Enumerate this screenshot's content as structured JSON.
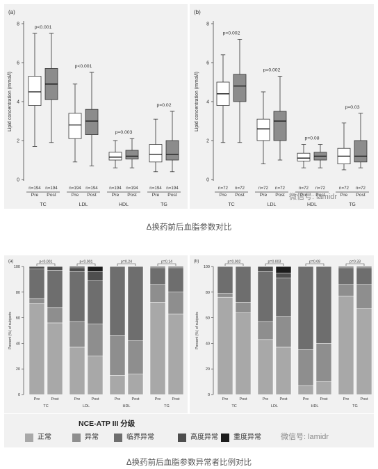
{
  "captions": {
    "top": "Δ换药前后血脂参数对比",
    "bottom": "Δ换药前后血脂参数异常者比例对比"
  },
  "watermarks": {
    "top": "微信号: lamidr",
    "bottom": "微信号: lamidr"
  },
  "legend": {
    "title": "NCE-ATP III 分级",
    "items": [
      {
        "label": "正常",
        "color": "#a8a8a8"
      },
      {
        "label": "异常",
        "color": "#8e8e8e"
      },
      {
        "label": "临界异常",
        "color": "#6e6e6e"
      },
      {
        "label": "高度异常",
        "color": "#4e4e4e"
      },
      {
        "label": "重度异常",
        "color": "#1c1c1c"
      }
    ]
  },
  "chart_data": [
    {
      "type": "boxplot",
      "panel_label": "(a)",
      "ylabel": "Lipid concentration (mmol/l)",
      "ylim": [
        0,
        8
      ],
      "yticks": [
        0,
        2,
        4,
        6,
        8
      ],
      "grid": false,
      "groups": [
        {
          "category": "TC",
          "p": "p<0.001",
          "boxes": [
            {
              "label": "Pre",
              "n": "n=194",
              "min": 1.7,
              "q1": 3.8,
              "median": 4.5,
              "q3": 5.3,
              "max": 7.5,
              "color": "#ffffff"
            },
            {
              "label": "Post",
              "n": "n=194",
              "min": 1.9,
              "q1": 4.1,
              "median": 4.9,
              "q3": 5.7,
              "max": 7.5,
              "color": "#8c8c8c"
            }
          ]
        },
        {
          "category": "LDL",
          "p": "p<0.001",
          "boxes": [
            {
              "label": "Pre",
              "n": "n=194",
              "min": 0.9,
              "q1": 2.1,
              "median": 2.8,
              "q3": 3.4,
              "max": 4.9,
              "color": "#ffffff"
            },
            {
              "label": "Post",
              "n": "n=194",
              "min": 0.7,
              "q1": 2.3,
              "median": 3.0,
              "q3": 3.6,
              "max": 5.5,
              "color": "#8c8c8c"
            }
          ]
        },
        {
          "category": "HDL",
          "p": "p=0.003",
          "boxes": [
            {
              "label": "Pre",
              "n": "n=194",
              "min": 0.6,
              "q1": 1.0,
              "median": 1.15,
              "q3": 1.4,
              "max": 2.0,
              "color": "#ffffff"
            },
            {
              "label": "Post",
              "n": "n=194",
              "min": 0.6,
              "q1": 1.05,
              "median": 1.2,
              "q3": 1.5,
              "max": 2.1,
              "color": "#8c8c8c"
            }
          ]
        },
        {
          "category": "TG",
          "p": "p=0.02",
          "boxes": [
            {
              "label": "Pre",
              "n": "n=194",
              "min": 0.4,
              "q1": 0.9,
              "median": 1.3,
              "q3": 1.8,
              "max": 3.1,
              "color": "#ffffff"
            },
            {
              "label": "Post",
              "n": "n=194",
              "min": 0.4,
              "q1": 1.0,
              "median": 1.3,
              "q3": 2.0,
              "max": 3.5,
              "color": "#8c8c8c"
            }
          ]
        }
      ]
    },
    {
      "type": "boxplot",
      "panel_label": "(b)",
      "ylabel": "Lipid concentration (mmol/l)",
      "ylim": [
        0,
        8
      ],
      "yticks": [
        0,
        2,
        4,
        6,
        8
      ],
      "grid": false,
      "groups": [
        {
          "category": "TC",
          "p": "p=0.002",
          "boxes": [
            {
              "label": "Pre",
              "n": "n=72",
              "min": 1.9,
              "q1": 3.8,
              "median": 4.4,
              "q3": 5.0,
              "max": 6.4,
              "color": "#ffffff"
            },
            {
              "label": "Post",
              "n": "n=72",
              "min": 1.9,
              "q1": 4.0,
              "median": 4.8,
              "q3": 5.4,
              "max": 7.2,
              "color": "#8c8c8c"
            }
          ]
        },
        {
          "category": "LDL",
          "p": "p=0.002",
          "boxes": [
            {
              "label": "Pre",
              "n": "n=72",
              "min": 0.8,
              "q1": 2.0,
              "median": 2.6,
              "q3": 3.1,
              "max": 4.5,
              "color": "#ffffff"
            },
            {
              "label": "Post",
              "n": "n=72",
              "min": 1.0,
              "q1": 2.0,
              "median": 3.0,
              "q3": 3.5,
              "max": 5.3,
              "color": "#8c8c8c"
            }
          ]
        },
        {
          "category": "HDL",
          "p": "p=0.08",
          "boxes": [
            {
              "label": "Pre",
              "n": "n=72",
              "min": 0.6,
              "q1": 0.95,
              "median": 1.1,
              "q3": 1.35,
              "max": 1.8,
              "color": "#ffffff"
            },
            {
              "label": "Post",
              "n": "n=72",
              "min": 0.6,
              "q1": 1.0,
              "median": 1.2,
              "q3": 1.4,
              "max": 1.8,
              "color": "#8c8c8c"
            }
          ]
        },
        {
          "category": "TG",
          "p": "p=0.03",
          "boxes": [
            {
              "label": "Pre",
              "n": "n=72",
              "min": 0.5,
              "q1": 0.8,
              "median": 1.2,
              "q3": 1.6,
              "max": 2.9,
              "color": "#ffffff"
            },
            {
              "label": "Post",
              "n": "n=72",
              "min": 0.6,
              "q1": 0.9,
              "median": 1.2,
              "q3": 2.0,
              "max": 3.4,
              "color": "#8c8c8c"
            }
          ]
        }
      ]
    },
    {
      "type": "stacked-bar",
      "panel_label": "(a)",
      "ylabel": "Percent (%) of subjects",
      "ylim": [
        0,
        100
      ],
      "yticks": [
        0,
        20,
        40,
        60,
        80,
        100
      ],
      "series_names": [
        "正常",
        "异常",
        "临界异常",
        "高度异常",
        "重度异常"
      ],
      "groups": [
        {
          "category": "TC",
          "p": "p<0.001",
          "bars": [
            {
              "label": "Pre",
              "values": [
                71,
                4,
                23,
                2,
                0
              ]
            },
            {
              "label": "Post",
              "values": [
                56,
                12,
                29,
                3,
                0
              ]
            }
          ]
        },
        {
          "category": "LDL",
          "p": "p<0.001",
          "bars": [
            {
              "label": "Pre",
              "values": [
                37,
                20,
                39,
                3,
                1
              ]
            },
            {
              "label": "Post",
              "values": [
                30,
                25,
                34,
                7,
                4
              ]
            }
          ]
        },
        {
          "category": "HDL",
          "p": "p=0.24",
          "bars": [
            {
              "label": "Pre",
              "values": [
                15,
                31,
                54,
                0,
                0
              ]
            },
            {
              "label": "Post",
              "values": [
                16,
                26,
                58,
                0,
                0
              ]
            }
          ]
        },
        {
          "category": "TG",
          "p": "p=0.14",
          "bars": [
            {
              "label": "Pre",
              "values": [
                72,
                14,
                13,
                1,
                0
              ]
            },
            {
              "label": "Post",
              "values": [
                63,
                17,
                19,
                1,
                0
              ]
            }
          ]
        }
      ]
    },
    {
      "type": "stacked-bar",
      "panel_label": "(b)",
      "ylabel": "Percent (%) of subjects",
      "ylim": [
        0,
        100
      ],
      "yticks": [
        0,
        20,
        40,
        60,
        80,
        100
      ],
      "series_names": [
        "正常",
        "异常",
        "临界异常",
        "高度异常",
        "重度异常"
      ],
      "groups": [
        {
          "category": "TC",
          "p": "p=0.002",
          "bars": [
            {
              "label": "Pre",
              "values": [
                76,
                3,
                21,
                0,
                0
              ]
            },
            {
              "label": "Post",
              "values": [
                64,
                8,
                28,
                0,
                0
              ]
            }
          ]
        },
        {
          "category": "LDL",
          "p": "p=0.003",
          "bars": [
            {
              "label": "Pre",
              "values": [
                43,
                14,
                39,
                4,
                0
              ]
            },
            {
              "label": "Post",
              "values": [
                37,
                24,
                30,
                4,
                5
              ]
            }
          ]
        },
        {
          "category": "HDL",
          "p": "p=0.08",
          "bars": [
            {
              "label": "Pre",
              "values": [
                7,
                28,
                65,
                0,
                0
              ]
            },
            {
              "label": "Post",
              "values": [
                10,
                30,
                60,
                0,
                0
              ]
            }
          ]
        },
        {
          "category": "TG",
          "p": "p=0.33",
          "bars": [
            {
              "label": "Pre",
              "values": [
                77,
                9,
                13,
                1,
                0
              ]
            },
            {
              "label": "Post",
              "values": [
                67,
                19,
                13,
                1,
                0
              ]
            }
          ]
        }
      ]
    }
  ]
}
